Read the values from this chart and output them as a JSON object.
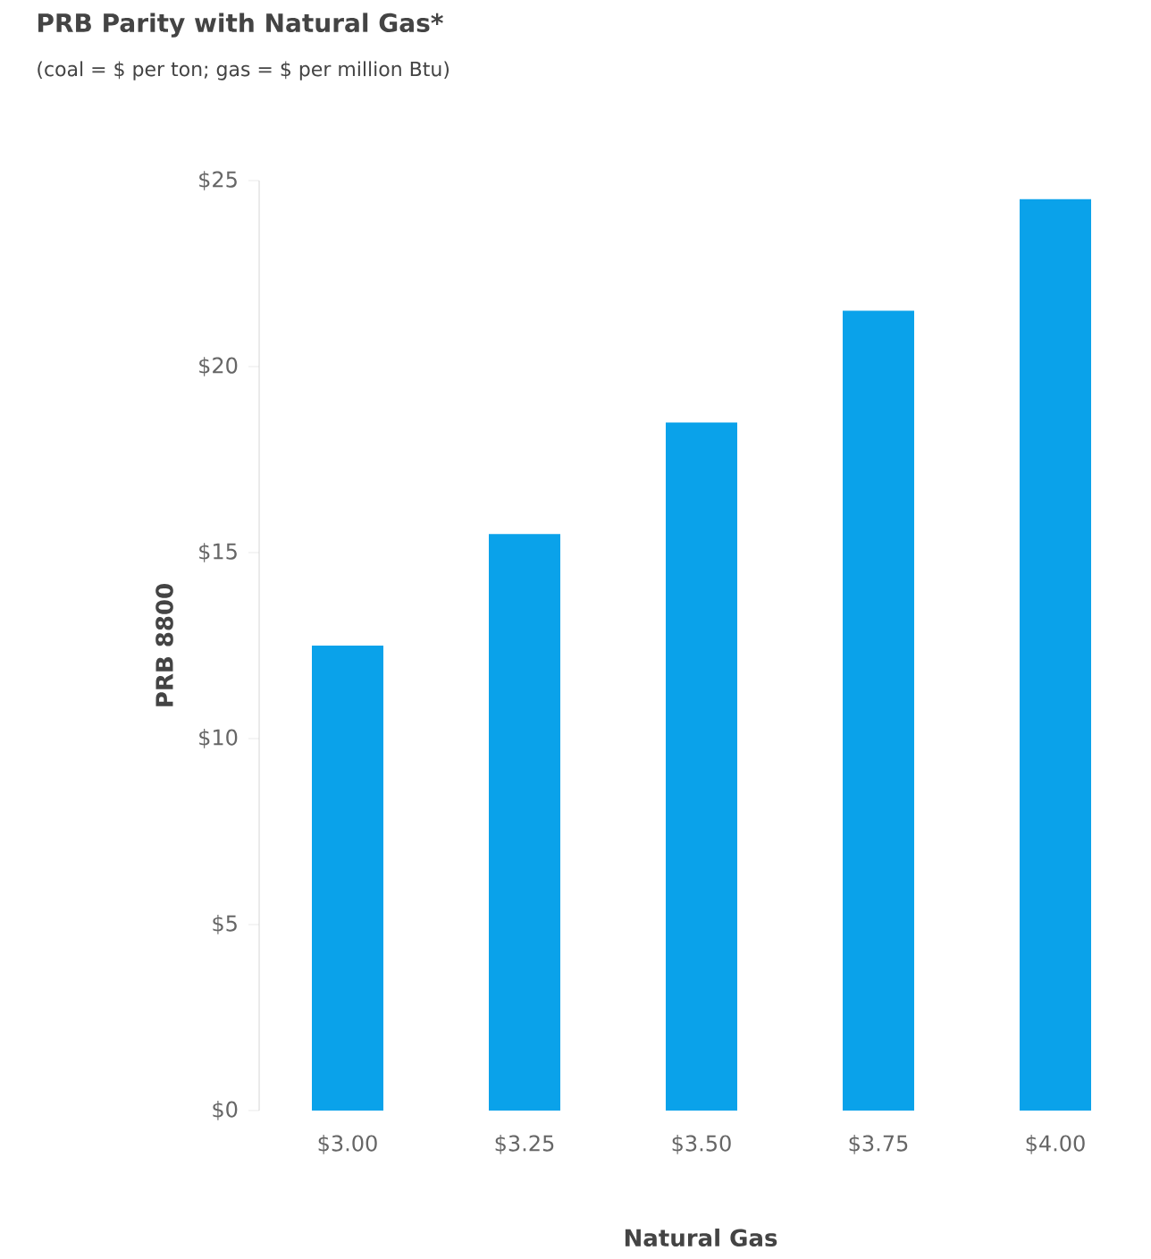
{
  "chart_data": {
    "type": "bar",
    "title": "PRB Parity with Natural Gas*",
    "subtitle": "(coal = $ per ton; gas = $ per million Btu)",
    "xlabel": "Natural Gas",
    "ylabel": "PRB 8800",
    "categories": [
      "$3.00",
      "$3.25",
      "$3.50",
      "$3.75",
      "$4.00"
    ],
    "values": [
      12.5,
      15.5,
      18.5,
      21.5,
      24.5
    ],
    "color": "#0aa2ea",
    "ylim": [
      0,
      25
    ],
    "yticks": [
      {
        "value": 0,
        "label": "$0"
      },
      {
        "value": 5,
        "label": "$5"
      },
      {
        "value": 10,
        "label": "$10"
      },
      {
        "value": 15,
        "label": "$15"
      },
      {
        "value": 20,
        "label": "$20"
      },
      {
        "value": 25,
        "label": "$25"
      }
    ]
  }
}
